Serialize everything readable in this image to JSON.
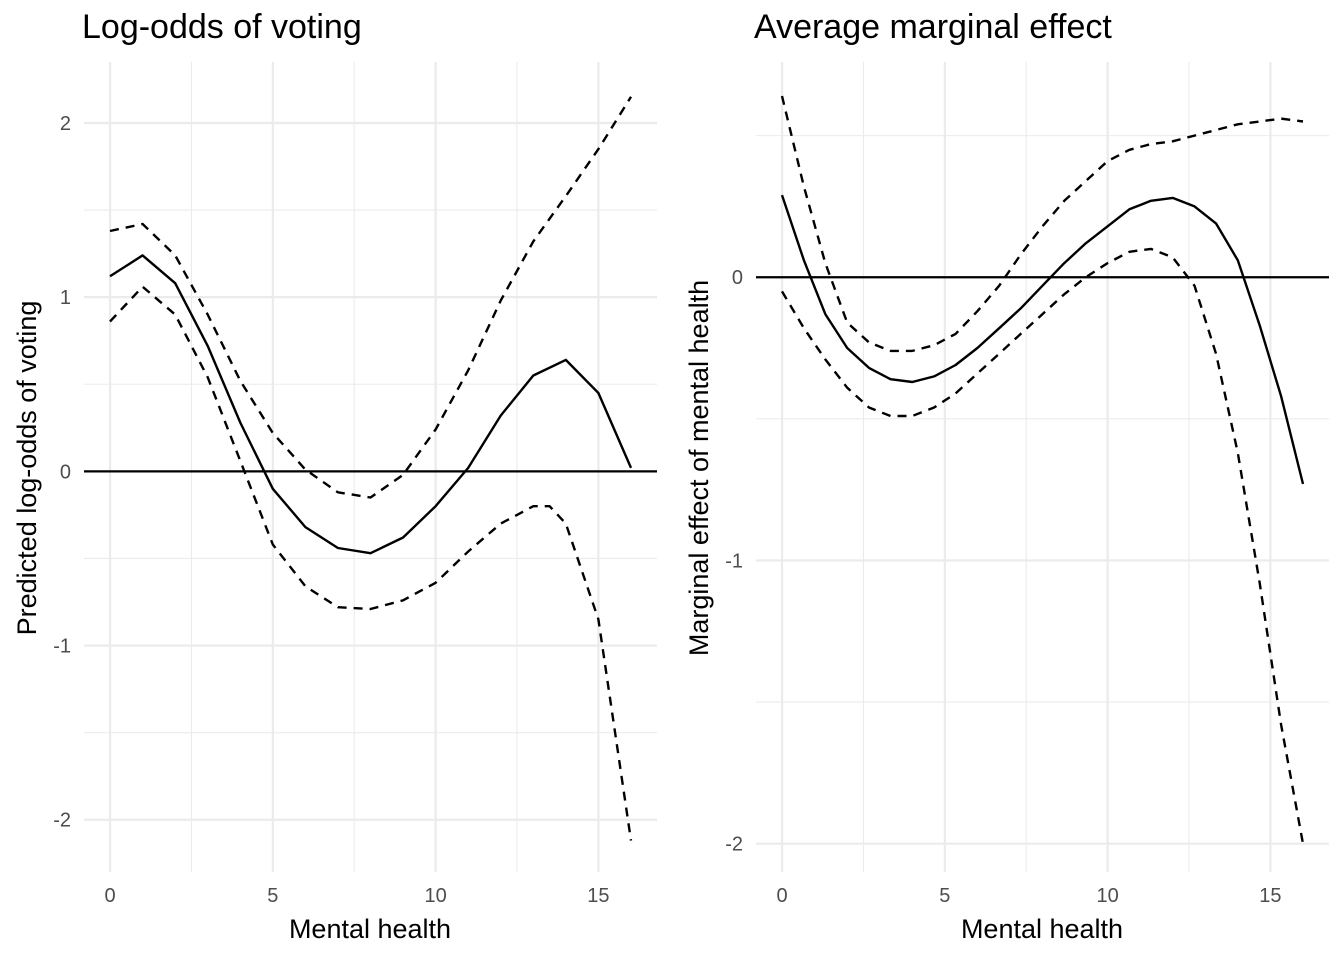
{
  "chart_data": [
    {
      "type": "line",
      "title": "Log-odds of voting",
      "xlabel": "Mental health",
      "ylabel": "Predicted log-odds of voting",
      "xlim": [
        -0.8,
        16.8
      ],
      "ylim": [
        -2.3,
        2.35
      ],
      "xticks": [
        0,
        5,
        10,
        15
      ],
      "xtick_labels": [
        "0",
        "5",
        "10",
        "15"
      ],
      "xminor": [
        2.5,
        7.5,
        12.5
      ],
      "yticks": [
        -2,
        -1,
        0,
        1,
        2
      ],
      "ytick_labels": [
        "-2",
        "-1",
        "0",
        "1",
        "2"
      ],
      "yminor": [
        -1.5,
        -0.5,
        0.5,
        1.5
      ],
      "grid": true,
      "reference_line_y": 0,
      "series": [
        {
          "style": "solid",
          "x": [
            0,
            1,
            2,
            3,
            4,
            5,
            6,
            7,
            8,
            9,
            10,
            11,
            12,
            13,
            14,
            15,
            16
          ],
          "y": [
            1.12,
            1.24,
            1.08,
            0.72,
            0.28,
            -0.1,
            -0.32,
            -0.44,
            -0.47,
            -0.38,
            -0.2,
            0.02,
            0.32,
            0.55,
            0.64,
            0.45,
            0.02
          ]
        },
        {
          "style": "dashed",
          "x": [
            0,
            1,
            2,
            3,
            4,
            5,
            6,
            7,
            8,
            9,
            10,
            11,
            12,
            13,
            14,
            15,
            16
          ],
          "y": [
            1.38,
            1.42,
            1.24,
            0.9,
            0.52,
            0.22,
            0.01,
            -0.12,
            -0.15,
            -0.02,
            0.24,
            0.58,
            0.98,
            1.32,
            1.58,
            1.85,
            2.15
          ]
        },
        {
          "style": "dashed",
          "x": [
            0,
            1,
            2,
            3,
            4,
            5,
            6,
            7,
            8,
            9,
            10,
            11,
            12,
            13,
            13.5,
            14,
            15,
            16
          ],
          "y": [
            0.86,
            1.06,
            0.9,
            0.54,
            0.06,
            -0.42,
            -0.66,
            -0.78,
            -0.79,
            -0.74,
            -0.64,
            -0.46,
            -0.3,
            -0.2,
            -0.2,
            -0.3,
            -0.85,
            -2.12
          ]
        }
      ]
    },
    {
      "type": "line",
      "title": "Average marginal effect",
      "xlabel": "Mental health",
      "ylabel": "Marginal effect of mental health",
      "xlim": [
        -0.8,
        16.8
      ],
      "ylim": [
        -2.1,
        0.76
      ],
      "xticks": [
        0,
        5,
        10,
        15
      ],
      "xtick_labels": [
        "0",
        "5",
        "10",
        "15"
      ],
      "xminor": [
        2.5,
        7.5,
        12.5
      ],
      "yticks": [
        -2,
        -1,
        0
      ],
      "ytick_labels": [
        "-2",
        "-1",
        "0"
      ],
      "yminor": [
        -1.5,
        -0.5,
        0.5
      ],
      "grid": true,
      "reference_line_y": 0,
      "series": [
        {
          "style": "solid",
          "x": [
            0,
            0.67,
            1.33,
            2,
            2.67,
            3.33,
            4,
            4.67,
            5.33,
            6,
            6.67,
            7.33,
            8,
            8.67,
            9.33,
            10,
            10.67,
            11.33,
            12,
            12.67,
            13.33,
            14,
            14.67,
            15.33,
            16
          ],
          "y": [
            0.29,
            0.06,
            -0.13,
            -0.25,
            -0.32,
            -0.36,
            -0.37,
            -0.35,
            -0.31,
            -0.25,
            -0.18,
            -0.11,
            -0.03,
            0.05,
            0.12,
            0.18,
            0.24,
            0.27,
            0.28,
            0.25,
            0.19,
            0.06,
            -0.17,
            -0.42,
            -0.73
          ]
        },
        {
          "style": "dashed",
          "x": [
            0,
            0.67,
            1.33,
            2,
            2.67,
            3.33,
            4,
            4.67,
            5.33,
            6,
            6.67,
            7.33,
            8,
            8.67,
            9.33,
            10,
            10.67,
            11.33,
            12,
            12.67,
            13.33,
            14,
            14.67,
            15.33,
            16
          ],
          "y": [
            0.64,
            0.32,
            0.05,
            -0.16,
            -0.23,
            -0.26,
            -0.26,
            -0.24,
            -0.2,
            -0.12,
            -0.03,
            0.08,
            0.18,
            0.27,
            0.34,
            0.41,
            0.45,
            0.47,
            0.48,
            0.5,
            0.52,
            0.54,
            0.55,
            0.56,
            0.55
          ]
        },
        {
          "style": "dashed",
          "x": [
            0,
            0.67,
            1.33,
            2,
            2.67,
            3.33,
            4,
            4.67,
            5.33,
            6,
            6.67,
            7.33,
            8,
            8.67,
            9.33,
            10,
            10.67,
            11.33,
            12,
            12.67,
            13.33,
            14,
            14.67,
            15.33,
            16
          ],
          "y": [
            -0.05,
            -0.18,
            -0.29,
            -0.39,
            -0.46,
            -0.49,
            -0.49,
            -0.46,
            -0.41,
            -0.34,
            -0.27,
            -0.2,
            -0.13,
            -0.06,
            0.0,
            0.05,
            0.09,
            0.1,
            0.07,
            -0.03,
            -0.27,
            -0.62,
            -1.08,
            -1.58,
            -2.0
          ]
        }
      ]
    }
  ]
}
